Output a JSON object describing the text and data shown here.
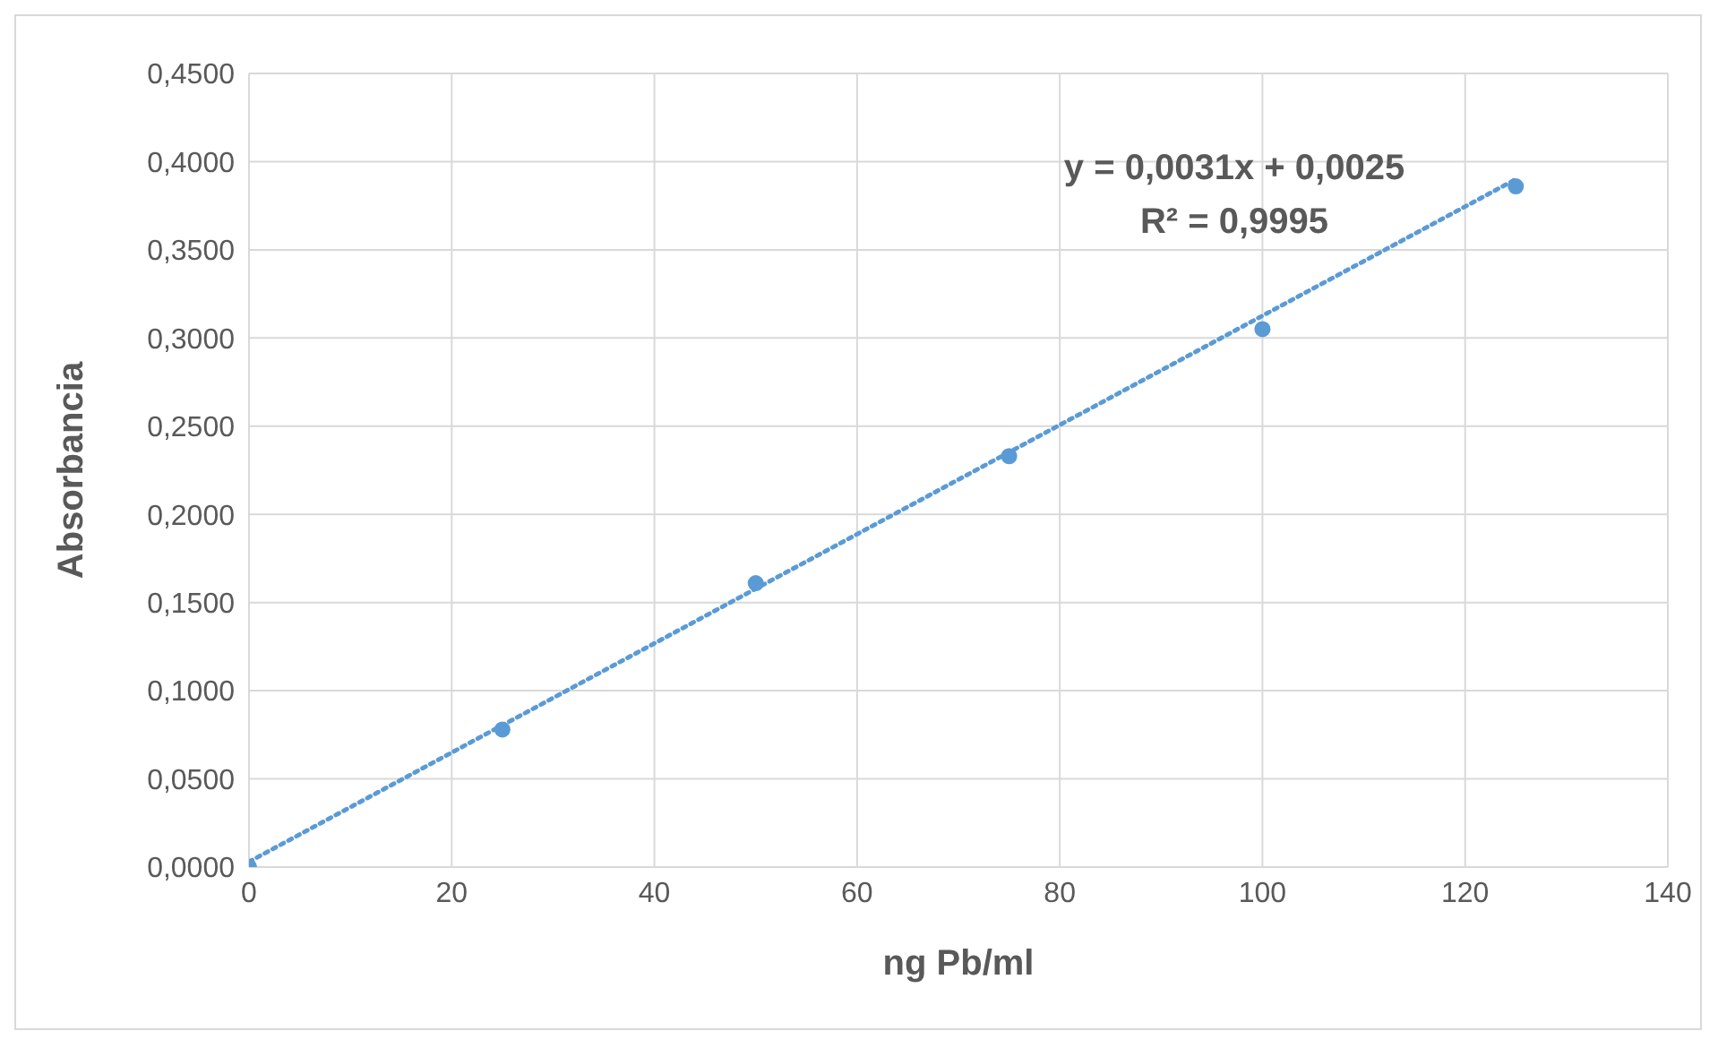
{
  "chart_data": {
    "type": "scatter",
    "xlabel": "ng Pb/ml",
    "ylabel": "Absorbancia",
    "xlim": [
      0,
      140
    ],
    "xticks": [
      0,
      20,
      40,
      60,
      80,
      100,
      120,
      140
    ],
    "ylim": [
      0,
      0.45
    ],
    "yticks": [
      {
        "value": 0,
        "label": "0,0000"
      },
      {
        "value": 0.05,
        "label": "0,0500"
      },
      {
        "value": 0.1,
        "label": "0,1000"
      },
      {
        "value": 0.15,
        "label": "0,1500"
      },
      {
        "value": 0.2,
        "label": "0,2000"
      },
      {
        "value": 0.25,
        "label": "0,2500"
      },
      {
        "value": 0.3,
        "label": "0,3000"
      },
      {
        "value": 0.35,
        "label": "0,3500"
      },
      {
        "value": 0.4,
        "label": "0,4000"
      },
      {
        "value": 0.45,
        "label": "0,4500"
      }
    ],
    "grid": true,
    "legend": false,
    "marker": "circle",
    "series": [
      {
        "color": "#5b9bd5",
        "x": [
          0,
          25,
          50,
          75,
          100,
          125
        ],
        "values": [
          0,
          0.078,
          0.161,
          0.233,
          0.305,
          0.386
        ]
      },
      {
        "type": "line",
        "color": "#5b9bd5",
        "line_style": "dotted",
        "marker": "none",
        "x": [
          0,
          125
        ],
        "values": [
          0.003,
          0.39
        ]
      }
    ],
    "annotations": [
      "y = 0,0031x + 0,0025",
      "R² = 0,9995"
    ]
  }
}
